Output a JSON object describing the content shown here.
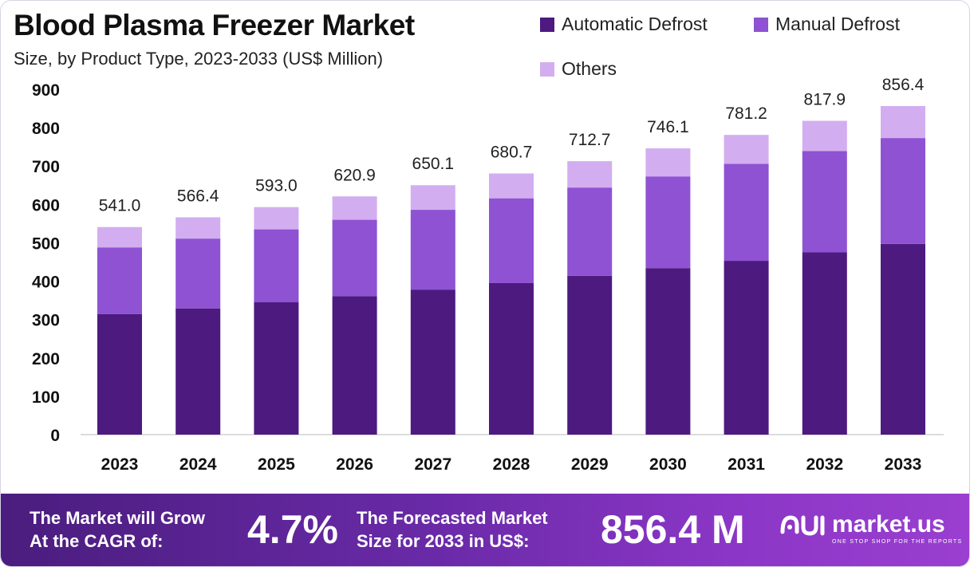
{
  "header": {
    "title": "Blood Plasma Freezer Market",
    "subtitle": "Size, by Product Type, 2023-2033 (US$ Million)"
  },
  "legend": {
    "items": [
      {
        "label": "Automatic Defrost",
        "color": "#4d1a80"
      },
      {
        "label": "Manual Defrost",
        "color": "#8e52d3"
      },
      {
        "label": "Others",
        "color": "#d2aef0"
      }
    ]
  },
  "chart_data": {
    "type": "bar",
    "stacked": true,
    "categories": [
      "2023",
      "2024",
      "2025",
      "2026",
      "2027",
      "2028",
      "2029",
      "2030",
      "2031",
      "2032",
      "2033"
    ],
    "series": [
      {
        "name": "Automatic Defrost",
        "color": "#4d1a80",
        "values": [
          314,
          329,
          345,
          361,
          378,
          395,
          414,
          434,
          453,
          475,
          497
        ]
      },
      {
        "name": "Manual Defrost",
        "color": "#8e52d3",
        "values": [
          174,
          182,
          190,
          199,
          208,
          221,
          230,
          239,
          253,
          264,
          276
        ]
      },
      {
        "name": "Others",
        "color": "#d2aef0",
        "values": [
          53.0,
          55.4,
          58.0,
          60.9,
          64.1,
          64.7,
          68.7,
          73.1,
          75.2,
          78.9,
          83.4
        ]
      }
    ],
    "totals": [
      541.0,
      566.4,
      593.0,
      620.9,
      650.1,
      680.7,
      712.7,
      746.1,
      781.2,
      817.9,
      856.4
    ],
    "total_labels": [
      "541.0",
      "566.4",
      "593.0",
      "620.9",
      "650.1",
      "680.7",
      "712.7",
      "746.1",
      "781.2",
      "817.9",
      "856.4"
    ],
    "ylim": [
      0,
      900
    ],
    "yticks": [
      0,
      100,
      200,
      300,
      400,
      500,
      600,
      700,
      800,
      900
    ],
    "grid": false,
    "legend_position": "top-right"
  },
  "footer": {
    "cagr_line1": "The Market will Grow",
    "cagr_line2": "At the CAGR of:",
    "cagr_value": "4.7%",
    "forecast_line1": "The Forecasted Market",
    "forecast_line2": "Size for 2033 in US$:",
    "forecast_value": "856.4 M",
    "brand_name": "market.us",
    "brand_tagline": "ONE STOP SHOP FOR THE REPORTS"
  }
}
